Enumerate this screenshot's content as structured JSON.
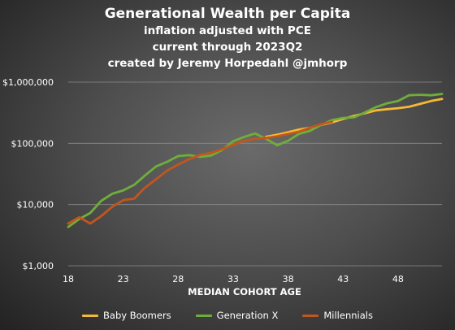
{
  "chart_data": {
    "type": "line",
    "title": "Generational Wealth per Capita",
    "subtitle_lines": [
      "inflation adjusted with PCE",
      "current through 2023Q2",
      "created by Jeremy Horpedahl @jmhorp"
    ],
    "xlabel": "MEDIAN COHORT AGE",
    "ylabel": "",
    "y_scale": "log",
    "xlim": [
      18,
      52
    ],
    "ylim": [
      1000,
      1000000
    ],
    "x_ticks": [
      18,
      23,
      28,
      33,
      38,
      43,
      48
    ],
    "x_tick_labels": [
      "18",
      "23",
      "28",
      "33",
      "38",
      "43",
      "48"
    ],
    "y_ticks": [
      1000,
      10000,
      100000,
      1000000
    ],
    "y_tick_labels": [
      "$1,000",
      "$10,000",
      "$100,000",
      "$1,000,000"
    ],
    "grid": "horizontal",
    "legend": "bottom",
    "series": [
      {
        "name": "Baby Boomers",
        "color": "#f5b935",
        "x": [
          36,
          37,
          38,
          39,
          40,
          41,
          42,
          43,
          44,
          45,
          46,
          47,
          48,
          49,
          50,
          51,
          52
        ],
        "y": [
          128000,
          138000,
          152000,
          168000,
          180000,
          200000,
          220000,
          250000,
          280000,
          310000,
          345000,
          360000,
          375000,
          395000,
          440000,
          490000,
          530000
        ]
      },
      {
        "name": "Generation X",
        "color": "#6fae3a",
        "x": [
          18,
          19,
          20,
          21,
          22,
          23,
          24,
          25,
          26,
          27,
          28,
          29,
          30,
          31,
          32,
          33,
          34,
          35,
          36,
          37,
          38,
          39,
          40,
          41,
          42,
          43,
          44,
          45,
          46,
          47,
          48,
          49,
          50,
          51,
          52
        ],
        "y": [
          4300,
          5800,
          7300,
          11500,
          15000,
          17000,
          21000,
          30000,
          42000,
          50000,
          62000,
          64000,
          60000,
          63000,
          78000,
          108000,
          127000,
          145000,
          118000,
          93000,
          110000,
          143000,
          160000,
          200000,
          240000,
          260000,
          265000,
          320000,
          390000,
          450000,
          490000,
          610000,
          620000,
          610000,
          640000
        ]
      },
      {
        "name": "Millennials",
        "color": "#c2561c",
        "x": [
          18,
          19,
          20,
          21,
          22,
          23,
          24,
          25,
          26,
          27,
          28,
          29,
          30,
          31,
          32,
          33,
          34,
          35,
          36,
          37,
          38,
          39,
          40,
          41,
          42
        ],
        "y": [
          4900,
          6200,
          4900,
          6500,
          9200,
          11800,
          12500,
          19000,
          26000,
          36000,
          45000,
          55000,
          65000,
          70000,
          80000,
          95000,
          110000,
          118000,
          122000,
          130000,
          142000,
          155000,
          180000,
          205000,
          225000
        ]
      }
    ]
  }
}
